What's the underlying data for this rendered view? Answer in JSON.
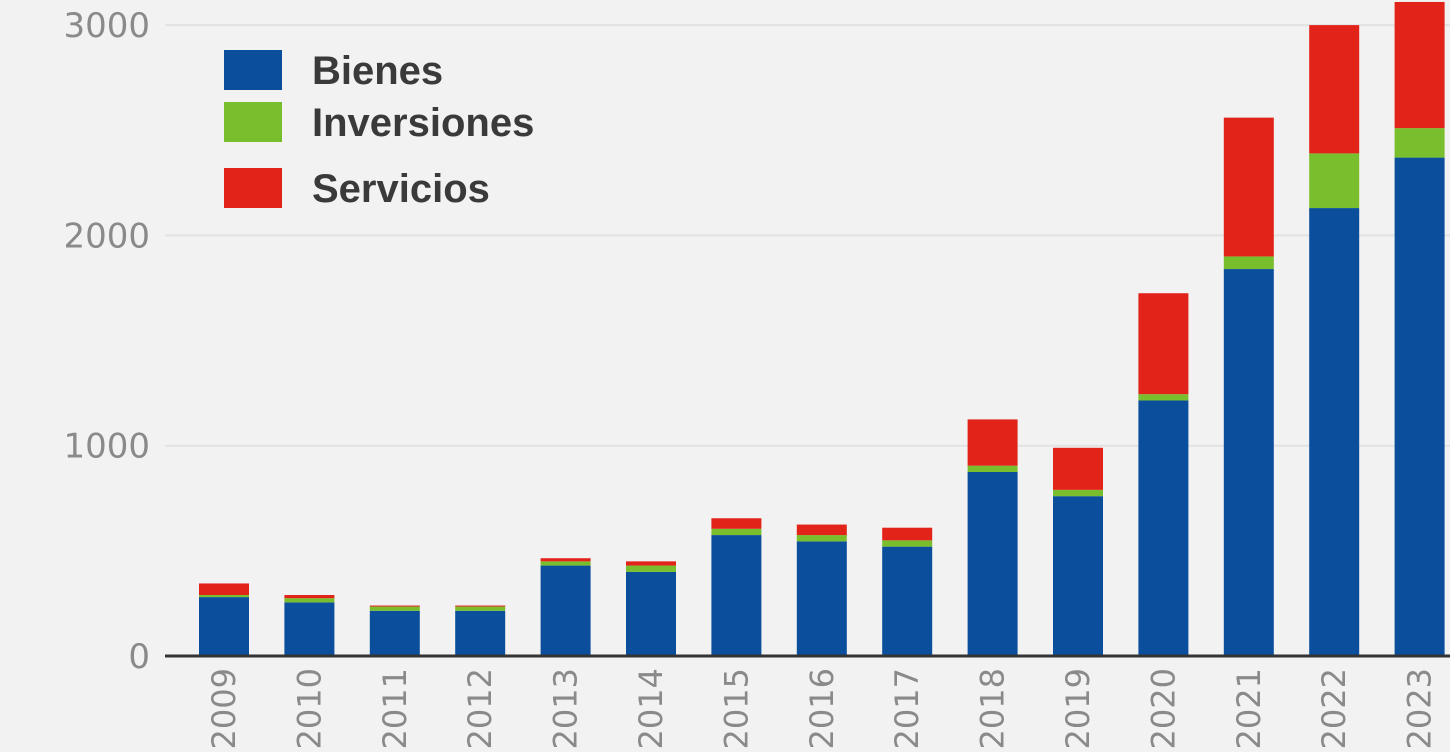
{
  "chart_data": {
    "type": "bar",
    "stacked": true,
    "categories": [
      "2009",
      "2010",
      "2011",
      "2012",
      "2013",
      "2014",
      "2015",
      "2016",
      "2017",
      "2018",
      "2019",
      "2020",
      "2021",
      "2022",
      "2023"
    ],
    "series": [
      {
        "name": "Bienes",
        "color": "#0b4f9c",
        "values": [
          280,
          255,
          215,
          215,
          430,
          400,
          575,
          545,
          520,
          875,
          760,
          1215,
          1840,
          2130,
          2370
        ]
      },
      {
        "name": "Inversiones",
        "color": "#79be2c",
        "values": [
          10,
          20,
          20,
          20,
          20,
          30,
          30,
          30,
          30,
          30,
          30,
          30,
          60,
          260,
          140
        ]
      },
      {
        "name": "Servicios",
        "color": "#e2231a",
        "values": [
          55,
          15,
          5,
          5,
          15,
          20,
          50,
          50,
          60,
          220,
          200,
          480,
          660,
          610,
          600
        ]
      }
    ],
    "ylim": [
      0,
      3100
    ],
    "yticks": [
      0,
      1000,
      2000,
      3000
    ],
    "legend_position": "top-left",
    "grid": true,
    "title": "",
    "xlabel": "",
    "ylabel": ""
  }
}
